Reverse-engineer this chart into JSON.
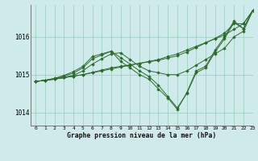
{
  "background_color": "#ceeaea",
  "plot_bg_color": "#ceeaea",
  "grid_color": "#99ccbb",
  "line_color": "#2d6b2d",
  "marker_color": "#2d6b2d",
  "xlabel": "Graphe pression niveau de la mer (hPa)",
  "xlim": [
    -0.5,
    23
  ],
  "ylim": [
    1013.65,
    1016.85
  ],
  "yticks": [
    1014,
    1015,
    1016
  ],
  "xticks": [
    0,
    1,
    2,
    3,
    4,
    5,
    6,
    7,
    8,
    9,
    10,
    11,
    12,
    13,
    14,
    15,
    16,
    17,
    18,
    19,
    20,
    21,
    22,
    23
  ],
  "series": [
    [
      1014.82,
      1014.85,
      1014.88,
      1014.92,
      1014.96,
      1015.0,
      1015.05,
      1015.1,
      1015.15,
      1015.2,
      1015.25,
      1015.3,
      1015.35,
      1015.4,
      1015.48,
      1015.55,
      1015.65,
      1015.75,
      1015.85,
      1015.95,
      1016.05,
      1016.2,
      1016.35,
      1016.7
    ],
    [
      1014.82,
      1014.85,
      1014.88,
      1014.92,
      1014.96,
      1015.0,
      1015.06,
      1015.12,
      1015.18,
      1015.22,
      1015.26,
      1015.3,
      1015.34,
      1015.38,
      1015.44,
      1015.5,
      1015.6,
      1015.72,
      1015.84,
      1015.96,
      1016.1,
      1016.35,
      1016.35,
      1016.7
    ],
    [
      1014.82,
      1014.85,
      1014.88,
      1014.93,
      1014.98,
      1015.1,
      1015.28,
      1015.42,
      1015.55,
      1015.58,
      1015.4,
      1015.22,
      1015.1,
      1015.05,
      1015.0,
      1015.0,
      1015.1,
      1015.25,
      1015.4,
      1015.55,
      1015.7,
      1016.0,
      1016.15,
      1016.7
    ],
    [
      1014.82,
      1014.85,
      1014.9,
      1014.96,
      1015.04,
      1015.18,
      1015.42,
      1015.52,
      1015.62,
      1015.45,
      1015.28,
      1015.1,
      1014.95,
      1014.72,
      1014.42,
      1014.12,
      1014.5,
      1015.05,
      1015.18,
      1015.6,
      1015.95,
      1016.38,
      1016.22,
      1016.7
    ],
    [
      1014.82,
      1014.85,
      1014.9,
      1014.98,
      1015.08,
      1015.22,
      1015.48,
      1015.55,
      1015.62,
      1015.35,
      1015.18,
      1015.0,
      1014.88,
      1014.62,
      1014.38,
      1014.08,
      1014.52,
      1015.1,
      1015.22,
      1015.65,
      1016.0,
      1016.42,
      1016.22,
      1016.7
    ]
  ]
}
